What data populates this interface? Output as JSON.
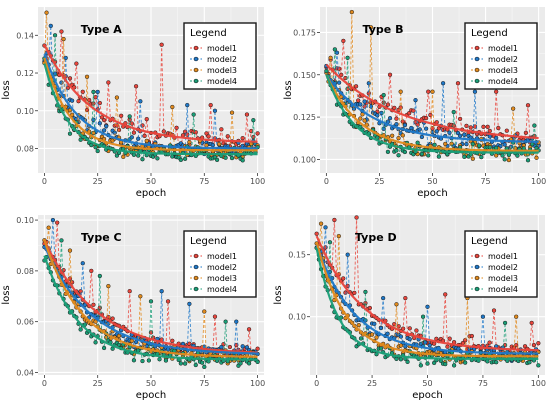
{
  "chart_data": [
    {
      "type": "line",
      "title": "Type A",
      "xlabel": "epoch",
      "ylabel": "loss",
      "xlim": [
        -3,
        103
      ],
      "ylim": [
        0.067,
        0.155
      ],
      "xticks": [
        0,
        25,
        50,
        75,
        100
      ],
      "xtick_labels": [
        "0",
        "25",
        "50",
        "75",
        "100"
      ],
      "yticks": [
        0.08,
        0.1,
        0.12,
        0.14
      ],
      "ytick_labels": [
        "0.08",
        "0.10",
        "0.12",
        "0.14"
      ],
      "grid": true,
      "legend": {
        "title": "Legend",
        "position": "top-right"
      },
      "smooth_curve": true,
      "series": [
        {
          "name": "model1",
          "color": "#e8453c",
          "start": 0.135,
          "end": 0.083,
          "tau": 22,
          "noise": 0.008,
          "spikes": [
            [
              8,
              0.142
            ],
            [
              15,
              0.125
            ],
            [
              30,
              0.115
            ],
            [
              43,
              0.113
            ],
            [
              55,
              0.135
            ],
            [
              78,
              0.103
            ],
            [
              95,
              0.098
            ]
          ]
        },
        {
          "name": "model2",
          "color": "#1f78c8",
          "start": 0.13,
          "end": 0.08,
          "tau": 15,
          "noise": 0.007,
          "spikes": [
            [
              3,
              0.145
            ],
            [
              10,
              0.128
            ],
            [
              25,
              0.11
            ],
            [
              45,
              0.105
            ],
            [
              67,
              0.103
            ],
            [
              80,
              0.1
            ]
          ]
        },
        {
          "name": "model3",
          "color": "#e08a1e",
          "start": 0.128,
          "end": 0.079,
          "tau": 12,
          "noise": 0.007,
          "spikes": [
            [
              1,
              0.152
            ],
            [
              9,
              0.138
            ],
            [
              20,
              0.118
            ],
            [
              34,
              0.107
            ],
            [
              60,
              0.102
            ],
            [
              88,
              0.099
            ]
          ]
        },
        {
          "name": "model4",
          "color": "#1a9e77",
          "start": 0.125,
          "end": 0.077,
          "tau": 11,
          "noise": 0.006,
          "spikes": [
            [
              5,
              0.14
            ],
            [
              23,
              0.11
            ],
            [
              40,
              0.097
            ],
            [
              70,
              0.098
            ],
            [
              98,
              0.095
            ]
          ]
        }
      ]
    },
    {
      "type": "line",
      "title": "Type B",
      "xlabel": "epoch",
      "ylabel": "loss",
      "xlim": [
        -3,
        103
      ],
      "ylim": [
        0.092,
        0.19
      ],
      "xticks": [
        0,
        25,
        50,
        75,
        100
      ],
      "xtick_labels": [
        "0",
        "25",
        "50",
        "75",
        "100"
      ],
      "yticks": [
        0.1,
        0.125,
        0.15,
        0.175
      ],
      "ytick_labels": [
        "0.100",
        "0.125",
        "0.150",
        "0.175"
      ],
      "grid": true,
      "legend": {
        "title": "Legend",
        "position": "top-right"
      },
      "smooth_curve": true,
      "series": [
        {
          "name": "model1",
          "color": "#e8453c",
          "start": 0.156,
          "end": 0.11,
          "tau": 35,
          "noise": 0.008,
          "spikes": [
            [
              8,
              0.17
            ],
            [
              30,
              0.15
            ],
            [
              48,
              0.14
            ],
            [
              62,
              0.145
            ],
            [
              80,
              0.14
            ],
            [
              95,
              0.132
            ]
          ]
        },
        {
          "name": "model2",
          "color": "#1f78c8",
          "start": 0.15,
          "end": 0.11,
          "tau": 22,
          "noise": 0.008,
          "spikes": [
            [
              5,
              0.163
            ],
            [
              20,
              0.145
            ],
            [
              42,
              0.135
            ],
            [
              55,
              0.145
            ],
            [
              70,
              0.14
            ]
          ]
        },
        {
          "name": "model3",
          "color": "#e08a1e",
          "start": 0.15,
          "end": 0.105,
          "tau": 16,
          "noise": 0.008,
          "spikes": [
            [
              2,
              0.16
            ],
            [
              12,
              0.187
            ],
            [
              21,
              0.178
            ],
            [
              35,
              0.14
            ],
            [
              50,
              0.14
            ],
            [
              88,
              0.13
            ]
          ]
        },
        {
          "name": "model4",
          "color": "#1a9e77",
          "start": 0.15,
          "end": 0.104,
          "tau": 13,
          "noise": 0.007,
          "spikes": [
            [
              4,
              0.165
            ],
            [
              10,
              0.16
            ],
            [
              27,
              0.138
            ],
            [
              60,
              0.128
            ],
            [
              98,
              0.12
            ]
          ]
        }
      ]
    },
    {
      "type": "line",
      "title": "Type C",
      "xlabel": "epoch",
      "ylabel": "loss",
      "xlim": [
        -3,
        103
      ],
      "ylim": [
        0.039,
        0.102
      ],
      "xticks": [
        0,
        25,
        50,
        75,
        100
      ],
      "xtick_labels": [
        "0",
        "25",
        "50",
        "75",
        "100"
      ],
      "yticks": [
        0.04,
        0.06,
        0.08,
        0.1
      ],
      "ytick_labels": [
        "0.04",
        "0.06",
        "0.08",
        "0.10"
      ],
      "grid": true,
      "legend": {
        "title": "Legend",
        "position": "top-right"
      },
      "smooth_curve": true,
      "series": [
        {
          "name": "model1",
          "color": "#e8453c",
          "start": 0.092,
          "end": 0.047,
          "tau": 25,
          "noise": 0.004,
          "spikes": [
            [
              6,
              0.099
            ],
            [
              22,
              0.08
            ],
            [
              40,
              0.072
            ],
            [
              58,
              0.068
            ],
            [
              80,
              0.062
            ],
            [
              96,
              0.057
            ]
          ]
        },
        {
          "name": "model2",
          "color": "#1f78c8",
          "start": 0.09,
          "end": 0.047,
          "tau": 22,
          "noise": 0.004,
          "spikes": [
            [
              4,
              0.1
            ],
            [
              18,
              0.083
            ],
            [
              55,
              0.072
            ],
            [
              68,
              0.067
            ],
            [
              90,
              0.06
            ]
          ]
        },
        {
          "name": "model3",
          "color": "#e08a1e",
          "start": 0.092,
          "end": 0.046,
          "tau": 18,
          "noise": 0.004,
          "spikes": [
            [
              2,
              0.097
            ],
            [
              12,
              0.088
            ],
            [
              30,
              0.074
            ],
            [
              45,
              0.07
            ],
            [
              75,
              0.064
            ]
          ]
        },
        {
          "name": "model4",
          "color": "#1a9e77",
          "start": 0.086,
          "end": 0.045,
          "tau": 16,
          "noise": 0.004,
          "spikes": [
            [
              8,
              0.092
            ],
            [
              26,
              0.078
            ],
            [
              50,
              0.068
            ],
            [
              85,
              0.06
            ]
          ]
        }
      ]
    },
    {
      "type": "line",
      "title": "Type D",
      "xlabel": "epoch",
      "ylabel": "loss",
      "xlim": [
        -3,
        103
      ],
      "ylim": [
        0.053,
        0.182
      ],
      "xticks": [
        0,
        25,
        50,
        75,
        100
      ],
      "xtick_labels": [
        "0",
        "25",
        "50",
        "75",
        "100"
      ],
      "yticks": [
        0.1,
        0.15
      ],
      "ytick_labels": [
        "0.10",
        "0.15"
      ],
      "grid": true,
      "legend": {
        "title": "Legend",
        "position": "top-right"
      },
      "smooth_curve": true,
      "series": [
        {
          "name": "model1",
          "color": "#e8453c",
          "start": 0.165,
          "end": 0.072,
          "tau": 22,
          "noise": 0.009,
          "spikes": [
            [
              8,
              0.178
            ],
            [
              18,
              0.18
            ],
            [
              40,
              0.115
            ],
            [
              58,
              0.118
            ],
            [
              80,
              0.105
            ],
            [
              97,
              0.095
            ]
          ]
        },
        {
          "name": "model2",
          "color": "#1f78c8",
          "start": 0.158,
          "end": 0.07,
          "tau": 17,
          "noise": 0.008,
          "spikes": [
            [
              4,
              0.172
            ],
            [
              14,
              0.15
            ],
            [
              30,
              0.115
            ],
            [
              50,
              0.108
            ],
            [
              75,
              0.1
            ]
          ]
        },
        {
          "name": "model3",
          "color": "#e08a1e",
          "start": 0.16,
          "end": 0.068,
          "tau": 13,
          "noise": 0.008,
          "spikes": [
            [
              2,
              0.175
            ],
            [
              10,
              0.165
            ],
            [
              36,
              0.11
            ],
            [
              68,
              0.115
            ],
            [
              90,
              0.1
            ]
          ]
        },
        {
          "name": "model4",
          "color": "#1a9e77",
          "start": 0.155,
          "end": 0.066,
          "tau": 10,
          "noise": 0.008,
          "spikes": [
            [
              6,
              0.16
            ],
            [
              22,
              0.12
            ],
            [
              48,
              0.1
            ],
            [
              85,
              0.095
            ]
          ]
        }
      ]
    }
  ]
}
